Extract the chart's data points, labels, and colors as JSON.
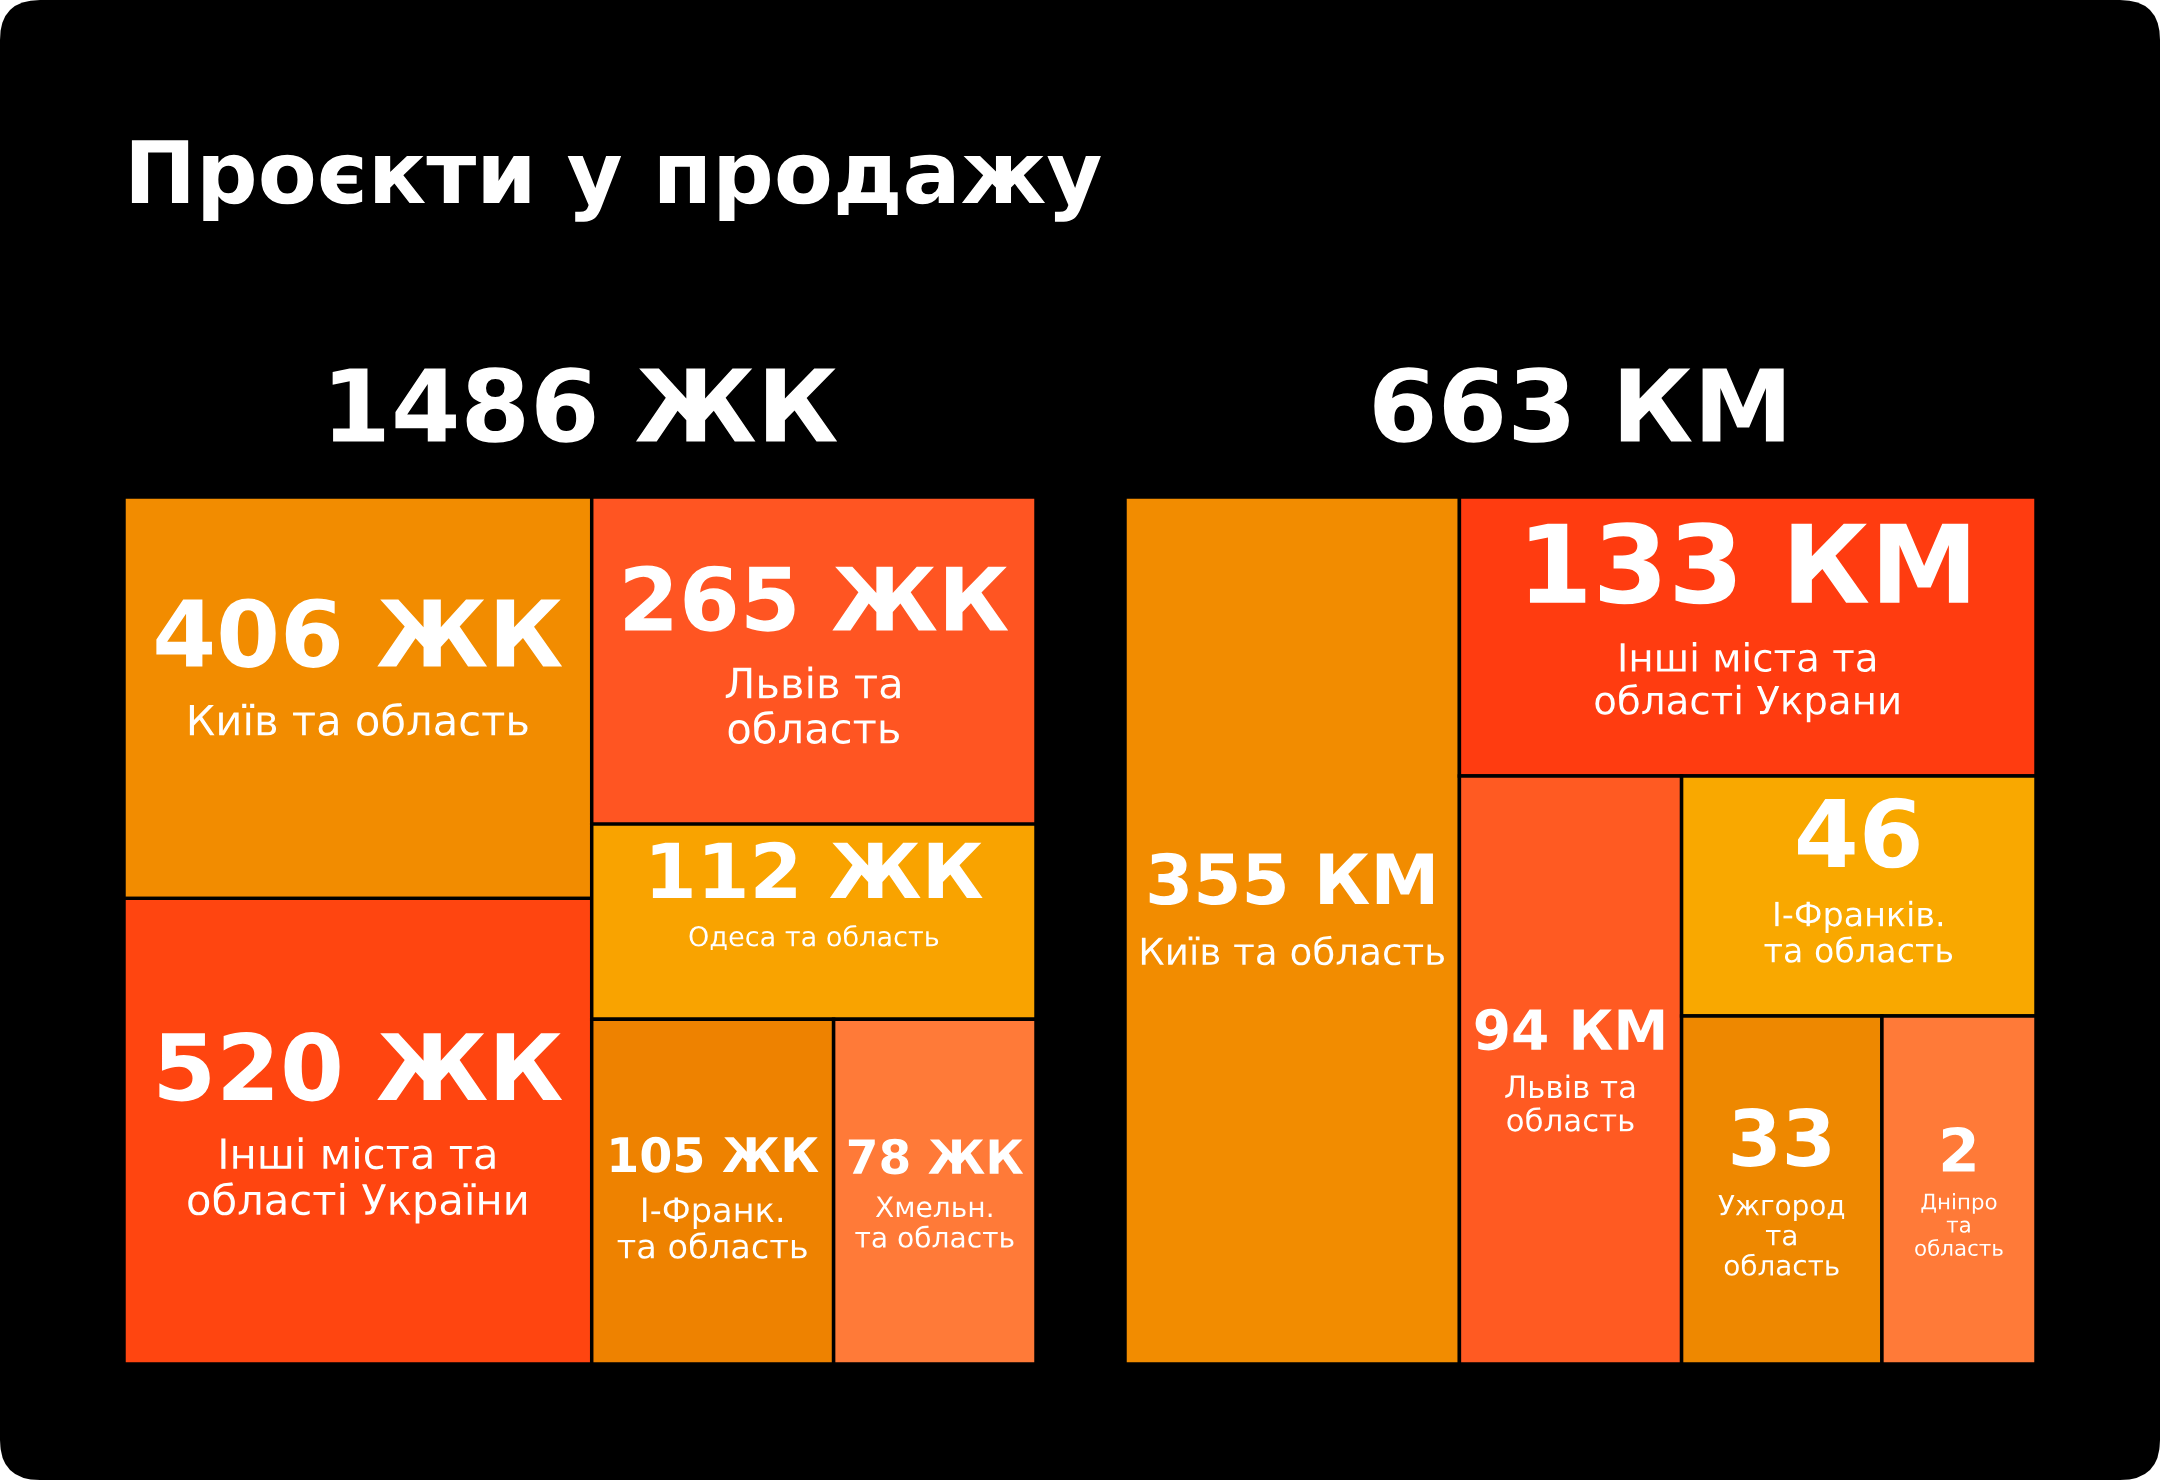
{
  "chart_data": [
    {
      "type": "other",
      "title": "Проєкти у продажу",
      "subtitle": "1486 ЖК",
      "categories": [
        "Київ та область",
        "Інші міста та\nобласті України",
        "Львів та\nобласть",
        "Одеса та область",
        "І-Франк.\nта область",
        "Хмельн.\nта область"
      ],
      "values": [
        406,
        520,
        265,
        112,
        105,
        78
      ],
      "value_labels": [
        "406 ЖК",
        "520 ЖК",
        "265 ЖК",
        "112 ЖК",
        "105 ЖК",
        "78 ЖК"
      ],
      "colors": [
        "#f28c00",
        "#ff4510",
        "#ff5522",
        "#f9a300",
        "#ee8200",
        "#ff7a38"
      ]
    },
    {
      "type": "other",
      "subtitle": "663 КМ",
      "categories": [
        "Київ та область",
        "Інші міста та\nобласті Украни",
        "Львів та\nобласть",
        "І-Франків.\nта область",
        "Ужгород\nта\nобласть",
        "Дніпро\nта\nобласть"
      ],
      "values": [
        355,
        133,
        94,
        46,
        33,
        2
      ],
      "value_labels": [
        "355 КМ",
        "133 КМ",
        "94 КМ",
        "46",
        "33",
        "2"
      ],
      "colors": [
        "#f28c00",
        "#ff3c10",
        "#ff5a22",
        "#f9a800",
        "#ee8800",
        "#ff7a38"
      ]
    }
  ]
}
